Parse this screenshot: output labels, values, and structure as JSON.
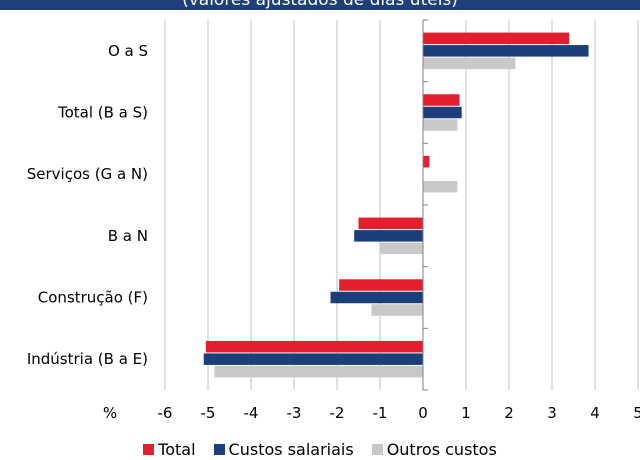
{
  "chart_data": {
    "type": "bar",
    "orientation": "horizontal",
    "title": "(valores ajustados de dias úteis)",
    "xlabel": "%",
    "ylabel": "",
    "categories": [
      "O a S",
      "Total (B a S)",
      "Serviços (G a N)",
      "B a N",
      "Construção (F)",
      "Indústria (B a E)"
    ],
    "series": [
      {
        "name": "Total",
        "color": "#e31e2d",
        "values": [
          3.4,
          0.85,
          0.15,
          -1.5,
          -1.95,
          -5.05
        ]
      },
      {
        "name": "Custos salariais",
        "color": "#1b3f7a",
        "values": [
          3.85,
          0.9,
          0.0,
          -1.6,
          -2.15,
          -5.1
        ]
      },
      {
        "name": "Outros custos",
        "color": "#c8c8c8",
        "values": [
          2.15,
          0.8,
          0.8,
          -1.0,
          -1.2,
          -4.85
        ]
      }
    ],
    "xlim": [
      -6,
      5
    ],
    "xticks": [
      "-6",
      "-5",
      "-4",
      "-3",
      "-2",
      "-1",
      "0",
      "1",
      "2",
      "3",
      "4",
      "5"
    ],
    "grid": true,
    "legend_position": "bottom"
  }
}
